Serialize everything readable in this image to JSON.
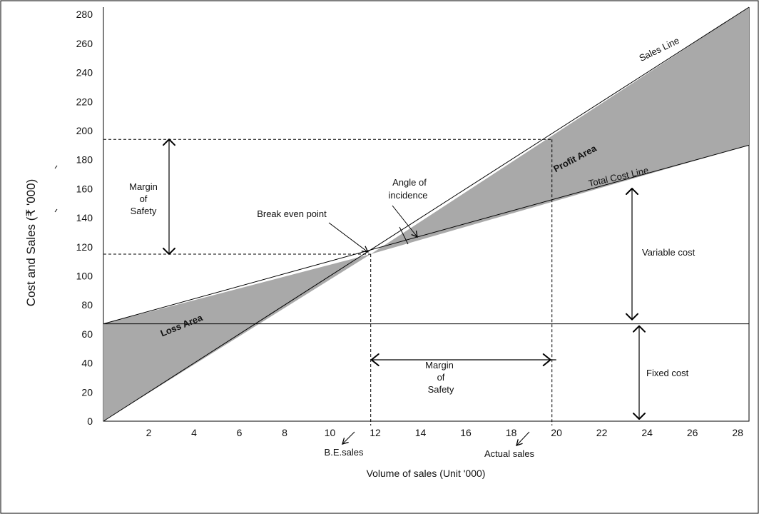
{
  "chart_data": {
    "type": "line",
    "title": "",
    "xlabel": "Volume of sales (Unit '000)",
    "ylabel": "Cost and Sales (₹ '000)",
    "xlim": [
      0,
      28.5
    ],
    "ylim": [
      0,
      285
    ],
    "x_ticks": [
      2,
      4,
      6,
      8,
      10,
      12,
      14,
      16,
      18,
      20,
      22,
      24,
      26,
      28
    ],
    "y_ticks": [
      0,
      20,
      40,
      60,
      80,
      100,
      120,
      140,
      160,
      180,
      200,
      220,
      240,
      260,
      280
    ],
    "grid": false,
    "series": [
      {
        "name": "Sales Line",
        "x": [
          0,
          28.5
        ],
        "y": [
          0,
          285
        ]
      },
      {
        "name": "Total Cost Line",
        "x": [
          0,
          28.5
        ],
        "y": [
          67,
          190
        ]
      },
      {
        "name": "Fixed cost",
        "x": [
          0,
          28.5
        ],
        "y": [
          67,
          67
        ]
      }
    ],
    "break_even_point": {
      "x": 11.8,
      "y": 115
    },
    "actual_sales": {
      "x": 19.8,
      "y": 194
    },
    "annotations": {
      "sales_line": "Sales Line",
      "total_cost_line": "Total Cost Line",
      "profit_area": "Profit Area",
      "loss_area": "Loss Area",
      "angle_of_incidence": [
        "Angle of",
        "incidence"
      ],
      "break_even_point": "Break even point",
      "margin_of_safety_vertical": [
        "Margin",
        "of",
        "Safety"
      ],
      "margin_of_safety_horizontal": [
        "Margin",
        "of",
        "Safety"
      ],
      "variable_cost": "Variable cost",
      "fixed_cost": "Fixed cost",
      "be_sales": "B.E.sales",
      "actual_sales": "Actual sales"
    },
    "colors": {
      "shaded_area": "#a9a9a9",
      "lines": "#000000",
      "background": "#ffffff"
    }
  }
}
